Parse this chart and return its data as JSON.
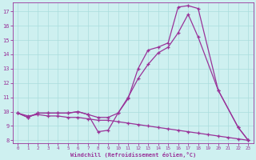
{
  "xlabel": "Windchill (Refroidissement éolien,°C)",
  "background_color": "#cef0f0",
  "grid_color": "#aadddd",
  "line_color": "#993399",
  "xlim": [
    -0.5,
    23.5
  ],
  "ylim": [
    7.8,
    17.6
  ],
  "yticks": [
    8,
    9,
    10,
    11,
    12,
    13,
    14,
    15,
    16,
    17
  ],
  "xticks": [
    0,
    1,
    2,
    3,
    4,
    5,
    6,
    7,
    8,
    9,
    10,
    11,
    12,
    13,
    14,
    15,
    16,
    17,
    18,
    19,
    20,
    21,
    22,
    23
  ],
  "series1_x": [
    0,
    1,
    2,
    3,
    4,
    5,
    6,
    7,
    8,
    9,
    10,
    11,
    12,
    13,
    14,
    15,
    16,
    17,
    18,
    20,
    22,
    23
  ],
  "series1_y": [
    9.9,
    9.6,
    9.9,
    9.9,
    9.9,
    9.9,
    10.0,
    9.8,
    8.6,
    8.7,
    9.9,
    10.9,
    13.0,
    14.3,
    14.5,
    14.8,
    17.3,
    17.4,
    17.2,
    11.5,
    8.9,
    8.0
  ],
  "series2_x": [
    0,
    1,
    2,
    3,
    4,
    5,
    6,
    7,
    8,
    9,
    10,
    11,
    12,
    13,
    14,
    15,
    16,
    17,
    18,
    20,
    22,
    23
  ],
  "series2_y": [
    9.9,
    9.6,
    9.9,
    9.9,
    9.9,
    9.9,
    10.0,
    9.8,
    9.6,
    9.6,
    9.9,
    11.0,
    12.3,
    13.3,
    14.1,
    14.5,
    15.5,
    16.8,
    15.2,
    11.5,
    8.9,
    8.0
  ],
  "series3_x": [
    0,
    1,
    2,
    3,
    4,
    5,
    6,
    7,
    8,
    9,
    10,
    11,
    12,
    13,
    14,
    15,
    16,
    17,
    18,
    19,
    20,
    21,
    22,
    23
  ],
  "series3_y": [
    9.9,
    9.7,
    9.8,
    9.7,
    9.7,
    9.6,
    9.6,
    9.5,
    9.4,
    9.4,
    9.3,
    9.2,
    9.1,
    9.0,
    8.9,
    8.8,
    8.7,
    8.6,
    8.5,
    8.4,
    8.3,
    8.2,
    8.1,
    8.0
  ]
}
